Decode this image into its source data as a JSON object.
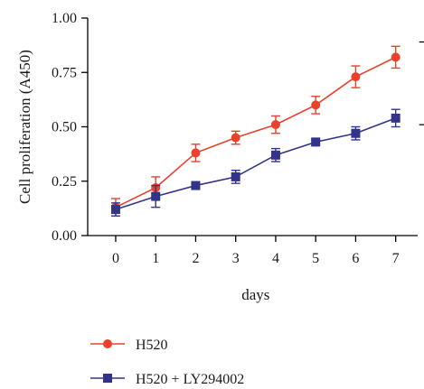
{
  "chart_data": {
    "type": "line",
    "xlabel": "days",
    "ylabel": "Cell proliferation (A450)",
    "xlim": [
      -0.7,
      7.55
    ],
    "ylim": [
      0,
      1.0
    ],
    "x_ticks": [
      0,
      1,
      2,
      3,
      4,
      5,
      6,
      7
    ],
    "y_ticks": [
      0.0,
      0.25,
      0.5,
      0.75,
      1.0
    ],
    "x_tick_labels": [
      "0",
      "1",
      "2",
      "3",
      "4",
      "5",
      "6",
      "7"
    ],
    "y_tick_labels": [
      "0.00",
      "0.25",
      "0.50",
      "0.75",
      "1.00"
    ],
    "grid": false,
    "legend_position": "bottom",
    "series": [
      {
        "name": "H520",
        "color": "#e8412c",
        "marker": "circle",
        "x": [
          0,
          1,
          2,
          3,
          4,
          5,
          6,
          7
        ],
        "values": [
          0.13,
          0.22,
          0.38,
          0.45,
          0.51,
          0.6,
          0.73,
          0.82
        ],
        "error": [
          0.04,
          0.05,
          0.04,
          0.03,
          0.04,
          0.04,
          0.05,
          0.05
        ]
      },
      {
        "name": "H520 + LY294002",
        "color": "#33338a",
        "marker": "square",
        "x": [
          0,
          1,
          2,
          3,
          4,
          5,
          6,
          7
        ],
        "values": [
          0.12,
          0.18,
          0.23,
          0.27,
          0.37,
          0.43,
          0.47,
          0.54
        ],
        "error": [
          0.03,
          0.05,
          0.01,
          0.03,
          0.03,
          0.01,
          0.03,
          0.04
        ]
      }
    ],
    "annotations": [
      {
        "type": "significance-bracket",
        "between": [
          "H520",
          "H520 + LY294002"
        ],
        "at_x": 7
      }
    ]
  }
}
